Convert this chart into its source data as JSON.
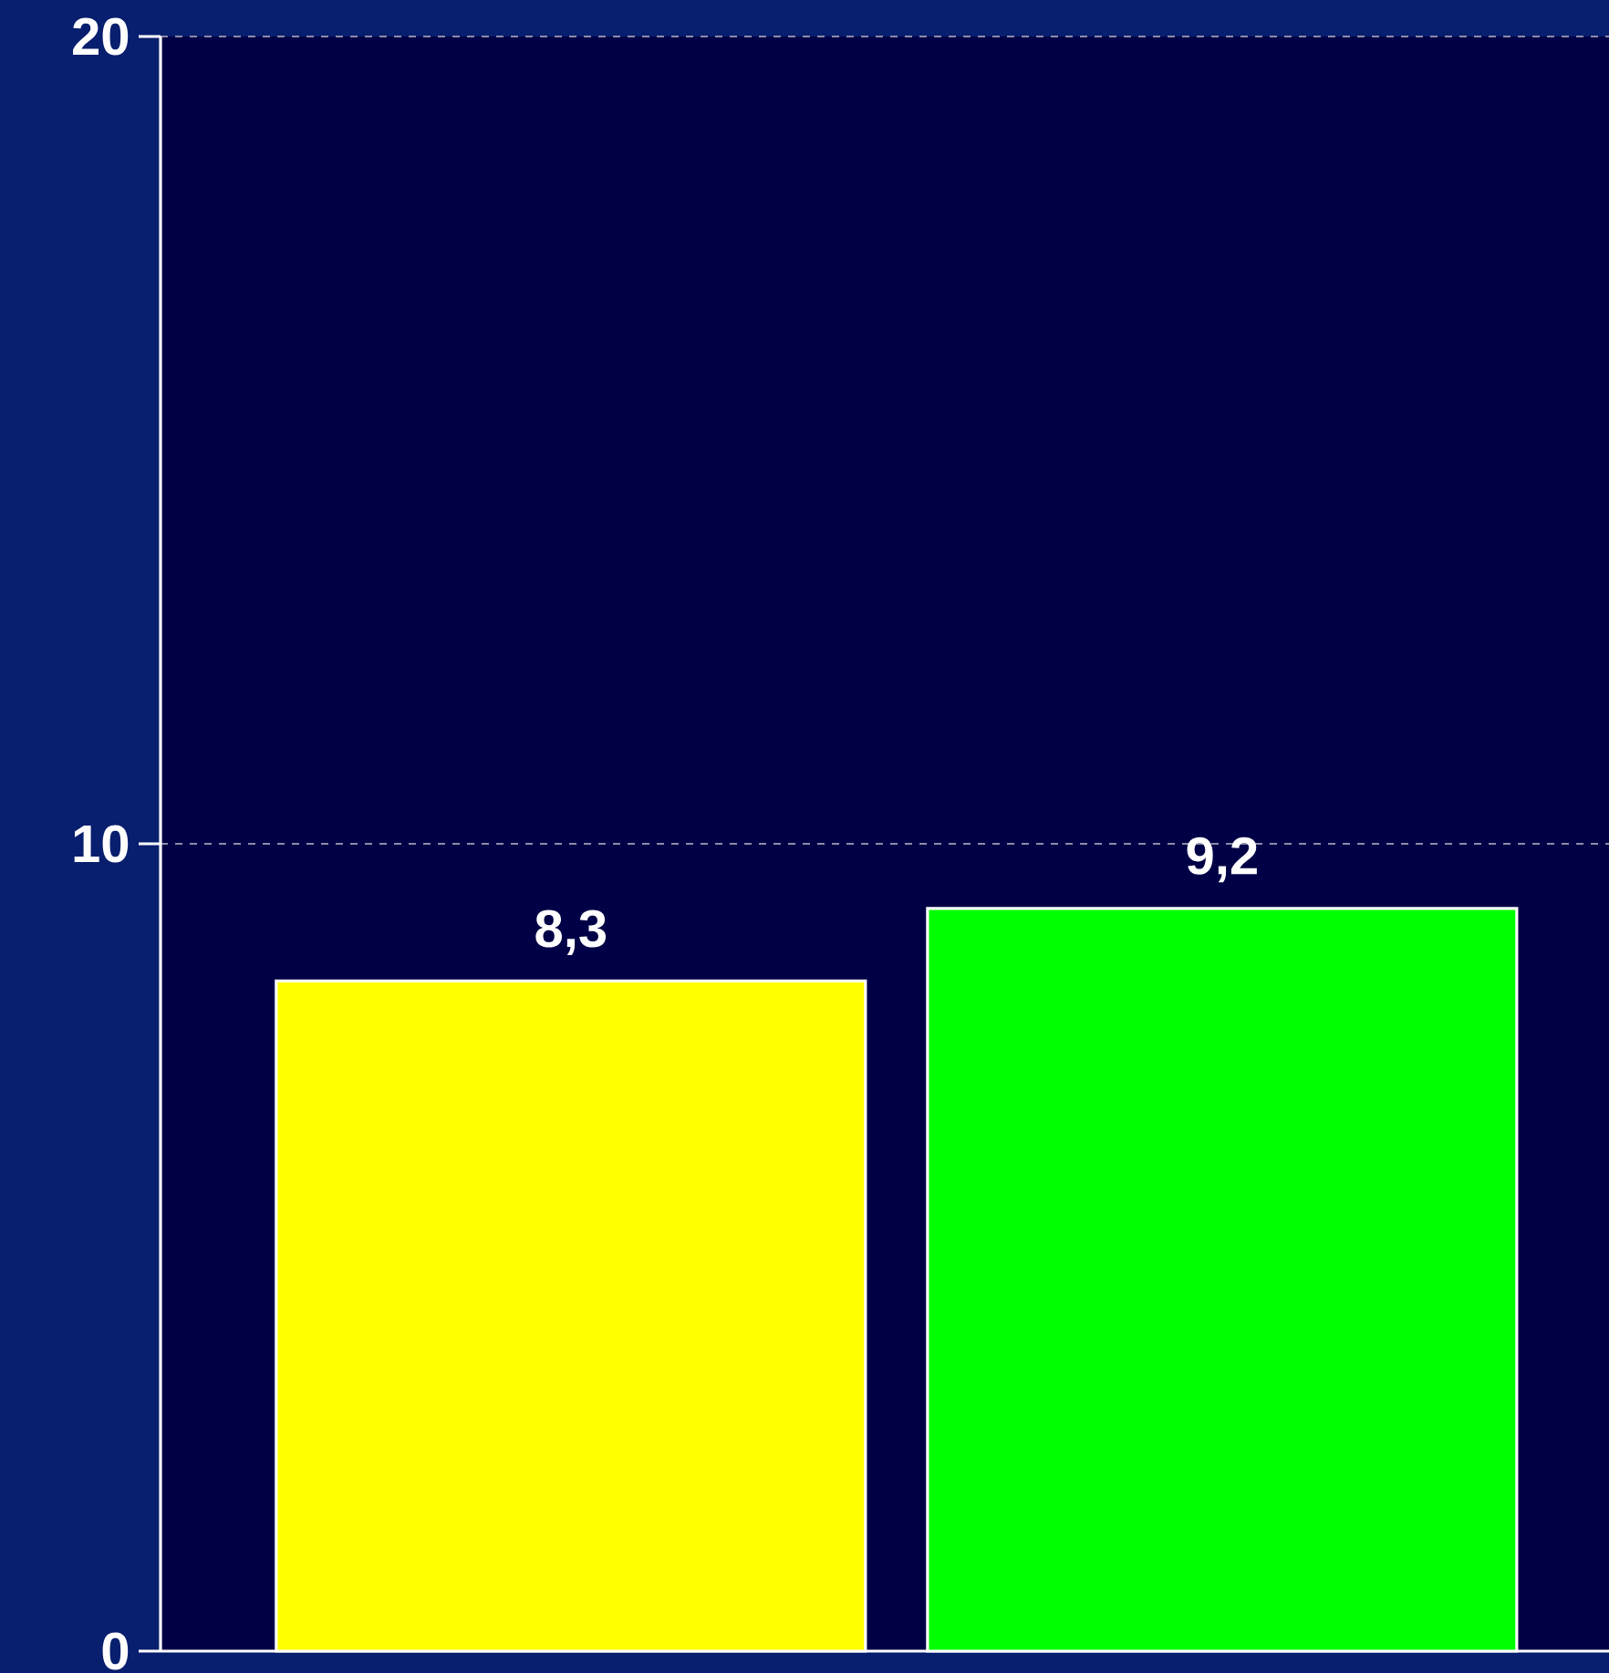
{
  "chart_data": {
    "type": "bar",
    "categories": [
      null,
      null
    ],
    "values": [
      8.3,
      9.2
    ],
    "colors": [
      "#ffff00",
      "#00ff00"
    ],
    "value_labels": [
      "8,3",
      "9,2"
    ],
    "ylim": [
      0,
      20
    ],
    "yticks": [
      0,
      10,
      20
    ],
    "grid": "y"
  }
}
